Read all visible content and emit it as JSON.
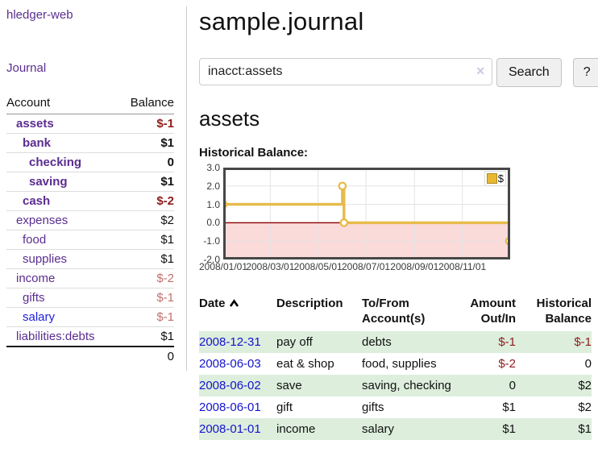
{
  "sidebar": {
    "app_title": "hledger-web",
    "journal_label": "Journal",
    "accounts_header": {
      "account": "Account",
      "balance": "Balance"
    },
    "accounts": [
      {
        "name": "assets",
        "depth": 1,
        "bold": true,
        "balance": "$-1"
      },
      {
        "name": "bank",
        "depth": 2,
        "bold": true,
        "balance": "$1"
      },
      {
        "name": "checking",
        "depth": 3,
        "bold": true,
        "balance": "0"
      },
      {
        "name": "saving",
        "depth": 3,
        "bold": true,
        "balance": "$1"
      },
      {
        "name": "cash",
        "depth": 2,
        "bold": true,
        "balance": "$-2"
      },
      {
        "name": "expenses",
        "depth": 1,
        "bold": false,
        "balance": "$2"
      },
      {
        "name": "food",
        "depth": 2,
        "bold": false,
        "balance": "$1"
      },
      {
        "name": "supplies",
        "depth": 2,
        "bold": false,
        "balance": "$1"
      },
      {
        "name": "income",
        "depth": 1,
        "bold": false,
        "balance": "$-2"
      },
      {
        "name": "gifts",
        "depth": 2,
        "bold": false,
        "balance": "$-1"
      },
      {
        "name": "salary",
        "depth": 2,
        "bold": false,
        "balance": "$-1",
        "link_color": "blue"
      },
      {
        "name": "liabilities:debts",
        "depth": 1,
        "bold": false,
        "balance": "$1"
      }
    ],
    "total": "0"
  },
  "main": {
    "title": "sample.journal",
    "search": {
      "value": "inacct:assets",
      "clear_icon": "✕",
      "button_label": "Search",
      "help_label": "?"
    },
    "account_heading": "assets",
    "chart_label": "Historical Balance:"
  },
  "chart_data": {
    "type": "line",
    "step": true,
    "title": "Historical Balance:",
    "series": [
      {
        "name": "$",
        "points": [
          {
            "date": "2008-01-01",
            "value": 1
          },
          {
            "date": "2008-06-01",
            "value": 2
          },
          {
            "date": "2008-06-03",
            "value": 0
          },
          {
            "date": "2008-12-31",
            "value": -1
          }
        ]
      }
    ],
    "x_domain": [
      "2008-01-01",
      "2009-01-01"
    ],
    "y_domain": [
      -2,
      3
    ],
    "x_ticks": [
      {
        "date": "2008-01-01",
        "label": "2008/01/01"
      },
      {
        "date": "2008-03-01",
        "label": "2008/03/01"
      },
      {
        "date": "2008-05-01",
        "label": "2008/05/01"
      },
      {
        "date": "2008-07-01",
        "label": "2008/07/01"
      },
      {
        "date": "2008-09-01",
        "label": "2008/09/01"
      },
      {
        "date": "2008-11-01",
        "label": "2008/11/01"
      }
    ],
    "y_ticks": [
      {
        "value": 3,
        "label": "3.0"
      },
      {
        "value": 2,
        "label": "2.0"
      },
      {
        "value": 1,
        "label": "1.0"
      },
      {
        "value": 0,
        "label": "0.0"
      },
      {
        "value": -1,
        "label": "-1.0"
      },
      {
        "value": -2,
        "label": "-2.0"
      }
    ],
    "grid": true,
    "legend_position": "top-right",
    "colors": {
      "line": "#e7bb4a",
      "marker_fill": "#ffffff",
      "negative_region": "#fbdada",
      "zero_line": "#8b0000",
      "grid": "#e3e3e3",
      "plot_border": "#474747",
      "legend_square": "#e8b930"
    }
  },
  "register": {
    "headers": {
      "date": "Date",
      "description": "Description",
      "accounts": "To/From Account(s)",
      "amount": "Amount Out/In",
      "balance": "Historical Balance"
    },
    "rows": [
      {
        "date": "2008-12-31",
        "description": "pay off",
        "accounts": "debts",
        "amount": "$-1",
        "balance": "$-1"
      },
      {
        "date": "2008-06-03",
        "description": "eat & shop",
        "accounts": "food, supplies",
        "amount": "$-2",
        "balance": "0"
      },
      {
        "date": "2008-06-02",
        "description": "save",
        "accounts": "saving, checking",
        "amount": "0",
        "balance": "$2"
      },
      {
        "date": "2008-06-01",
        "description": "gift",
        "accounts": "gifts",
        "amount": "$1",
        "balance": "$2"
      },
      {
        "date": "2008-01-01",
        "description": "income",
        "accounts": "salary",
        "amount": "$1",
        "balance": "$1"
      }
    ]
  }
}
